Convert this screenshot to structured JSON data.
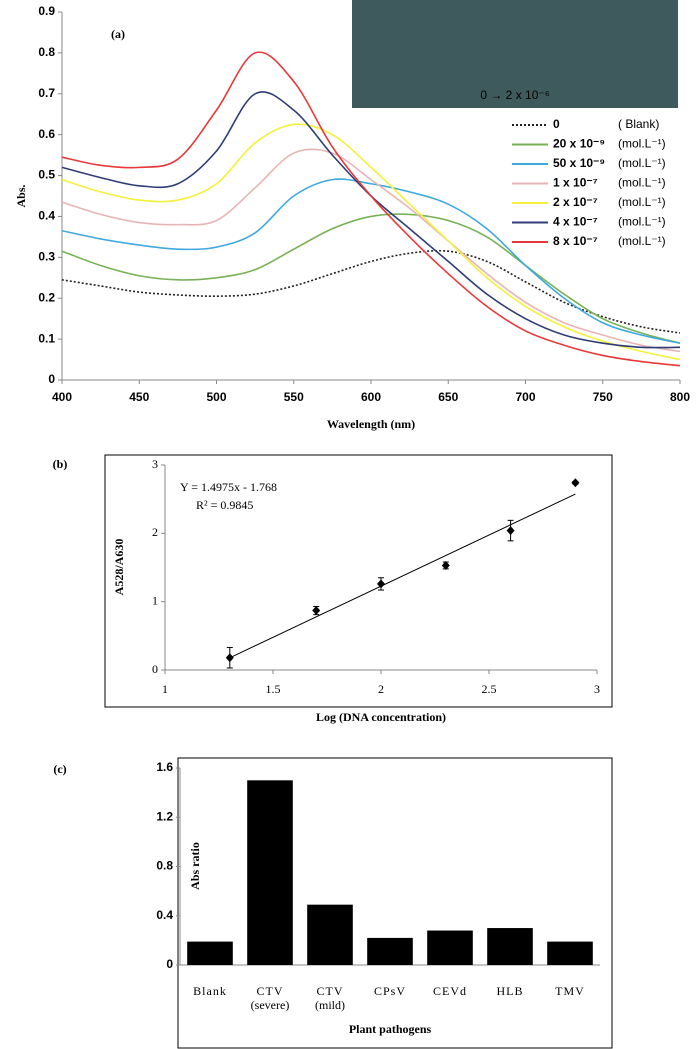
{
  "chart_data": [
    {
      "type": "line",
      "panel_label": "(a)",
      "inset_caption": "0 → 2 x 10⁻⁶",
      "xlabel": "Wavelength  (nm)",
      "ylabel": "Abs.",
      "x": [
        400,
        425,
        450,
        475,
        500,
        525,
        550,
        575,
        600,
        625,
        650,
        675,
        700,
        725,
        750,
        775,
        800
      ],
      "xlim": [
        400,
        800
      ],
      "xticks": [
        400,
        450,
        500,
        550,
        600,
        650,
        700,
        750,
        800
      ],
      "ylim": [
        0,
        0.9
      ],
      "yticks": [
        0,
        0.1,
        0.2,
        0.3,
        0.4,
        0.5,
        0.6,
        0.7,
        0.8,
        0.9
      ],
      "series": [
        {
          "name": "0",
          "note": "( Blank)",
          "color": "#222222",
          "line_style": "dotted",
          "values": [
            0.245,
            0.23,
            0.215,
            0.208,
            0.205,
            0.21,
            0.23,
            0.26,
            0.29,
            0.31,
            0.315,
            0.29,
            0.24,
            0.19,
            0.155,
            0.13,
            0.115
          ]
        },
        {
          "name": "20 x 10⁻⁹",
          "note": "(mol.L⁻¹)",
          "color": "#77b255",
          "values": [
            0.315,
            0.28,
            0.255,
            0.245,
            0.25,
            0.27,
            0.32,
            0.37,
            0.4,
            0.405,
            0.39,
            0.35,
            0.28,
            0.21,
            0.15,
            0.115,
            0.09
          ]
        },
        {
          "name": "50 x 10⁻⁹",
          "note": "(mol.L⁻¹)",
          "color": "#3fa9e0",
          "values": [
            0.365,
            0.345,
            0.33,
            0.32,
            0.325,
            0.36,
            0.45,
            0.49,
            0.48,
            0.46,
            0.43,
            0.37,
            0.28,
            0.2,
            0.14,
            0.11,
            0.09
          ]
        },
        {
          "name": "1 x 10⁻⁷",
          "note": "(mol.L⁻¹)",
          "color": "#e8b4b4",
          "values": [
            0.435,
            0.405,
            0.385,
            0.38,
            0.39,
            0.47,
            0.555,
            0.555,
            0.49,
            0.42,
            0.34,
            0.26,
            0.19,
            0.14,
            0.11,
            0.085,
            0.07
          ]
        },
        {
          "name": "2 x 10⁻⁷",
          "note": "(mol.L⁻¹)",
          "color": "#f5f03a",
          "values": [
            0.49,
            0.46,
            0.44,
            0.44,
            0.48,
            0.58,
            0.625,
            0.6,
            0.52,
            0.43,
            0.34,
            0.25,
            0.18,
            0.13,
            0.095,
            0.07,
            0.05
          ]
        },
        {
          "name": "4 x 10⁻⁷",
          "note": "(mol.L⁻¹)",
          "color": "#2e3d75",
          "values": [
            0.52,
            0.495,
            0.475,
            0.48,
            0.56,
            0.7,
            0.66,
            0.55,
            0.45,
            0.37,
            0.29,
            0.21,
            0.15,
            0.11,
            0.09,
            0.08,
            0.08
          ]
        },
        {
          "name": "8 x 10⁻⁷",
          "note": "(mol.L⁻¹)",
          "color": "#e8383a",
          "values": [
            0.545,
            0.525,
            0.52,
            0.54,
            0.66,
            0.8,
            0.73,
            0.57,
            0.45,
            0.35,
            0.26,
            0.18,
            0.12,
            0.085,
            0.06,
            0.045,
            0.035
          ]
        }
      ]
    },
    {
      "type": "scatter",
      "panel_label": "(b)",
      "xlabel": "Log (DNA concentration)",
      "ylabel": "A528/A630",
      "x": [
        1.3,
        1.7,
        2.0,
        2.3,
        2.6,
        2.9
      ],
      "values": [
        0.18,
        0.87,
        1.26,
        1.53,
        2.04,
        2.74
      ],
      "errors": [
        0.15,
        0.06,
        0.09,
        0.05,
        0.15,
        0.02
      ],
      "color": "#000000",
      "xlim": [
        1,
        3
      ],
      "xticks": [
        1,
        1.5,
        2,
        2.5,
        3
      ],
      "ylim": [
        0,
        3
      ],
      "yticks": [
        0,
        1,
        2,
        3
      ],
      "trendline": {
        "slope": 1.4975,
        "intercept": -1.768,
        "equation": "Y = 1.4975x - 1.768",
        "r_squared": "R² = 0.9845"
      }
    },
    {
      "type": "bar",
      "panel_label": "(c)",
      "xlabel": "Plant pathogens",
      "ylabel": "Abs ratio",
      "categories": [
        "Blank",
        "CTV",
        "CTV",
        "CPsV",
        "CEVd",
        "HLB",
        "TMV"
      ],
      "category_notes": [
        null,
        "(severe)",
        "(mild)",
        null,
        null,
        null,
        null
      ],
      "values": [
        0.19,
        1.5,
        0.49,
        0.22,
        0.28,
        0.3,
        0.19
      ],
      "color": "#000000",
      "ylim": [
        0,
        1.6
      ],
      "yticks": [
        0,
        0.4,
        0.8,
        1.2,
        1.6
      ]
    }
  ]
}
